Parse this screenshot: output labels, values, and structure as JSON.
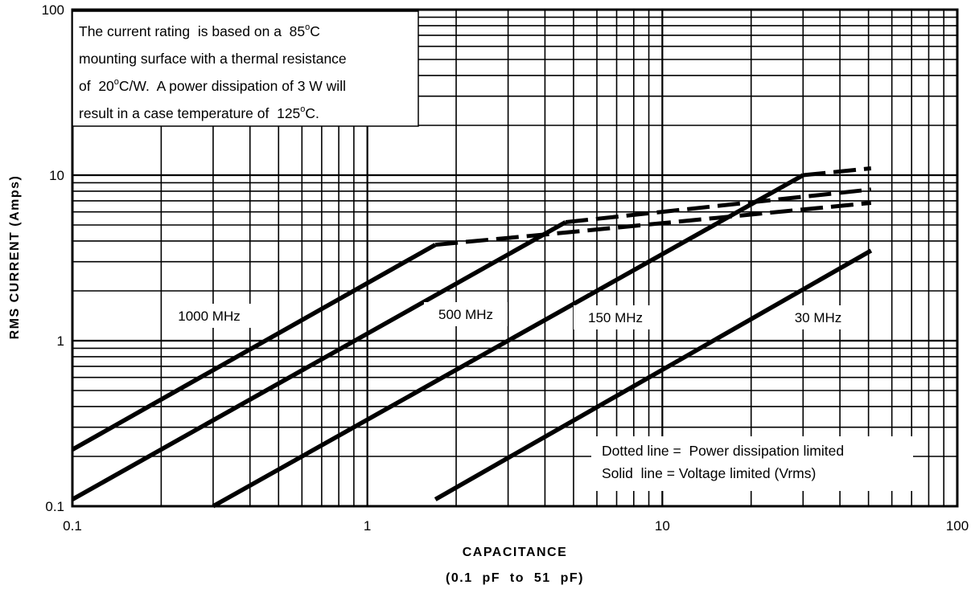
{
  "chart_data": {
    "type": "line",
    "x_scale": "log",
    "y_scale": "log",
    "xlim": [
      0.1,
      100
    ],
    "ylim": [
      0.1,
      100
    ],
    "xlabel": "CAPACITANCE",
    "xlabel_sub": "(0.1  pF  to  51  pF)",
    "ylabel": "RMS  CURRENT  (Amps)",
    "x_ticks": [
      "0.1",
      "1",
      "10",
      "100"
    ],
    "y_ticks": [
      "0.1",
      "1",
      "10",
      "100"
    ],
    "grid": true,
    "series": [
      {
        "name": "1000 MHz",
        "solid": [
          [
            0.1,
            0.22
          ],
          [
            1.7,
            3.8
          ]
        ],
        "dotted": [
          [
            1.7,
            3.8
          ],
          [
            4.7,
            4.5
          ],
          [
            51,
            6.8
          ]
        ]
      },
      {
        "name": "500 MHz",
        "solid": [
          [
            0.1,
            0.11
          ],
          [
            4.7,
            5.2
          ]
        ],
        "dotted": [
          [
            4.7,
            5.2
          ],
          [
            51,
            8.2
          ]
        ]
      },
      {
        "name": "150 MHz",
        "solid": [
          [
            0.3,
            0.1
          ],
          [
            30,
            10
          ]
        ],
        "dotted": [
          [
            30,
            10
          ],
          [
            51,
            11
          ]
        ]
      },
      {
        "name": "30 MHz",
        "solid": [
          [
            1.7,
            0.11
          ],
          [
            51,
            3.5
          ]
        ],
        "dotted": []
      }
    ],
    "note": {
      "lines": [
        [
          "The current rating  is based on a  85",
          "o",
          "C"
        ],
        [
          "mounting surface with a thermal resistance"
        ],
        [
          "of  20",
          "o",
          "C/W.  A power dissipation of 3 W will"
        ],
        [
          "result in a case temperature of  125",
          "o",
          "C."
        ]
      ]
    },
    "legend": {
      "placement": "bottom-right",
      "lines": [
        "Dotted line =  Power dissipation limited",
        "Solid  line = Voltage limited (Vrms)"
      ]
    }
  }
}
